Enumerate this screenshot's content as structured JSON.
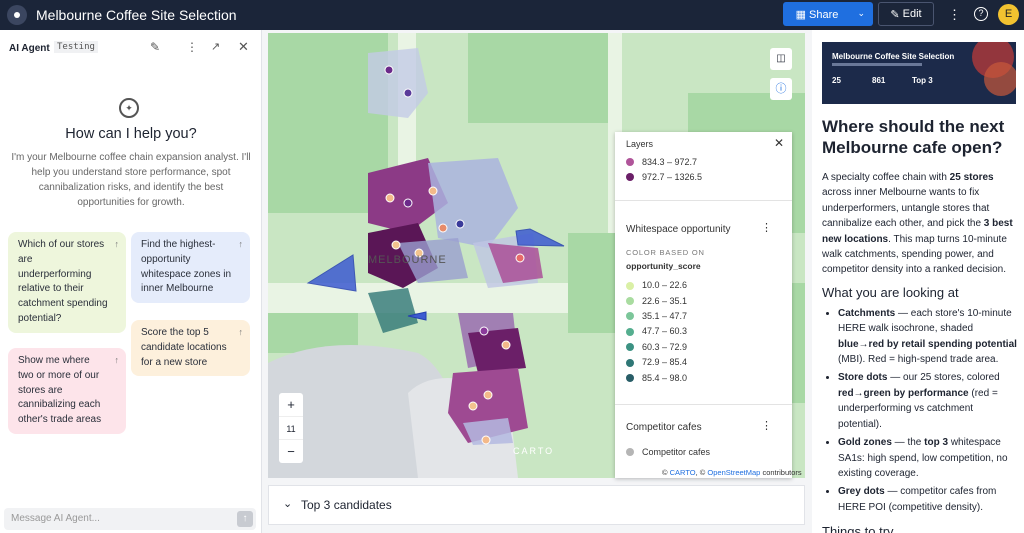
{
  "header": {
    "title": "Melbourne Coffee Site Selection",
    "share": "Share",
    "edit": "Edit",
    "avatar": "E"
  },
  "agent": {
    "title": "AI Agent",
    "badge": "Testing",
    "heading": "How can I help you?",
    "intro": "I'm your Melbourne coffee chain expansion analyst. I'll help you understand store performance, spot cannibalization risks, and identify the best opportunities for growth.",
    "suggestions": [
      "Which of our stores are underperforming relative to their catchment spending potential?",
      "Find the highest-opportunity whitespace zones in inner Melbourne",
      "Show me where two or more of our stores are cannibalizing each other's trade areas",
      "Score the top 5 candidate locations for a new store"
    ],
    "placeholder": "Message AI Agent..."
  },
  "map": {
    "city": "MELBOURNE",
    "zoom": "11",
    "attribution_prefix": "©",
    "attribution_carto": "CARTO",
    "attribution_osm": "OpenStreetMap",
    "attribution_suffix": "contributors",
    "watermark": "CARTO",
    "layers": {
      "title": "Layers",
      "catchment_items": [
        {
          "label": "834.3 – 972.7",
          "color": "#b0559a"
        },
        {
          "label": "972.7 – 1326.5",
          "color": "#6b1f68"
        }
      ],
      "whitespace": {
        "title": "Whitespace opportunity",
        "based_on": "COLOR BASED ON",
        "field": "opportunity_score",
        "items": [
          {
            "label": "10.0 – 22.6",
            "color": "#daf0a6"
          },
          {
            "label": "22.6 – 35.1",
            "color": "#a9dca0"
          },
          {
            "label": "35.1 – 47.7",
            "color": "#7cc69a"
          },
          {
            "label": "47.7 – 60.3",
            "color": "#55ae8f"
          },
          {
            "label": "60.3 – 72.9",
            "color": "#3c9283"
          },
          {
            "label": "72.9 – 85.4",
            "color": "#2f7776"
          },
          {
            "label": "85.4 – 98.0",
            "color": "#285d67"
          }
        ]
      },
      "competitor": {
        "title": "Competitor cafes",
        "item": "Competitor cafes",
        "color": "#b5b5b5"
      }
    }
  },
  "bottom": {
    "title": "Top 3 candidates"
  },
  "story": {
    "thumb_title": "Melbourne Coffee Site Selection",
    "thumb_stats": [
      "25",
      "861",
      "Top 3"
    ],
    "h1": "Where should the next Melbourne cafe open?",
    "intro": [
      {
        "t": "A specialty coffee chain with "
      },
      {
        "t": "25 stores",
        "b": true
      },
      {
        "t": " across inner Melbourne wants to fix underperformers, untangle stores that cannibalize each other, and pick the "
      },
      {
        "t": "3 best new locations",
        "b": true
      },
      {
        "t": ". This map turns 10-minute walk catchments, spending power, and competitor density into a ranked decision."
      }
    ],
    "h2": "What you are looking at",
    "bullets": [
      [
        {
          "t": "Catchments",
          "b": true
        },
        {
          "t": " — each store's 10-minute HERE walk isochrone, shaded "
        },
        {
          "t": "blue→red by retail spending potential",
          "b": true
        },
        {
          "t": " (MBI). Red = high-spend trade area."
        }
      ],
      [
        {
          "t": "Store dots",
          "b": true
        },
        {
          "t": " — our 25 stores, colored "
        },
        {
          "t": "red→green by performance",
          "b": true
        },
        {
          "t": " (red = underperforming vs catchment potential)."
        }
      ],
      [
        {
          "t": "Gold zones",
          "b": true
        },
        {
          "t": " — the "
        },
        {
          "t": "top 3",
          "b": true
        },
        {
          "t": " whitespace SA1s: high spend, low competition, no existing coverage."
        }
      ],
      [
        {
          "t": "Grey dots",
          "b": true
        },
        {
          "t": " — competitor cafes from HERE POI (competitive density)."
        }
      ]
    ],
    "h3": "Things to try"
  }
}
